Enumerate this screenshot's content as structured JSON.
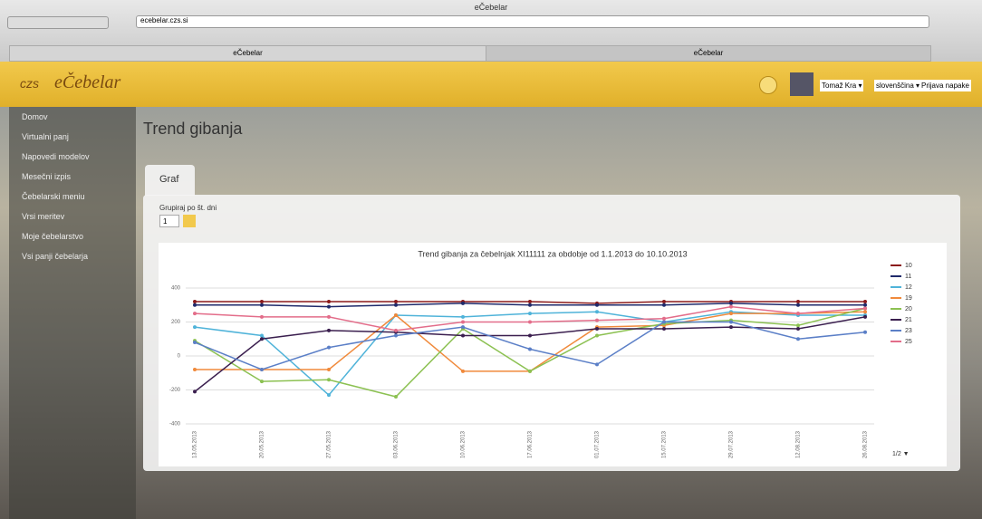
{
  "browser": {
    "window_title": "eČebelar",
    "url": "ecebelar.czs.si",
    "tabs": [
      "eČebelar",
      "eČebelar"
    ]
  },
  "header": {
    "logo_prefix": "czs",
    "logo": "eČebelar",
    "user": "Tomaž Kra ▾",
    "language": "slovenščina ▾",
    "report": "Prijava napake"
  },
  "sidebar": [
    "Domov",
    "Virtualni panj",
    "Napovedi modelov",
    "Mesečni izpis",
    "Čebelarski meniu",
    "Vrsi meritev",
    "Moje čebelarstvo",
    "Vsi panji čebelarja"
  ],
  "page": {
    "title": "Trend gibanja",
    "tab": "Graf",
    "group_label": "Grupiraj po št. dni",
    "group_value": "1"
  },
  "chart_data": {
    "type": "line",
    "title": "Trend gibanja za čebelnjak XI11111 za obdobje od 1.1.2013 do 10.10.2013",
    "categories": [
      "13.05.2013",
      "20.05.2013",
      "27.05.2013",
      "03.06.2013",
      "10.06.2013",
      "17.06.2013",
      "01.07.2013",
      "15.07.2013",
      "29.07.2013",
      "12.08.2013",
      "26.08.2013"
    ],
    "ylim": [
      -400,
      400
    ],
    "yticks": [
      -400,
      -200,
      0,
      200,
      400
    ],
    "grid": true,
    "legend": "right",
    "legend_pager": "1/2 ▼",
    "series": [
      {
        "name": "10",
        "color": "#8b1a1a",
        "values": [
          320,
          320,
          320,
          320,
          320,
          320,
          310,
          320,
          320,
          320,
          320
        ]
      },
      {
        "name": "11",
        "color": "#1f2a6b",
        "values": [
          300,
          300,
          290,
          300,
          310,
          300,
          300,
          300,
          310,
          300,
          300
        ]
      },
      {
        "name": "12",
        "color": "#4fb3d9",
        "values": [
          170,
          120,
          -230,
          240,
          230,
          250,
          260,
          200,
          260,
          240,
          240
        ]
      },
      {
        "name": "19",
        "color": "#f08a3c",
        "values": [
          -80,
          -80,
          -80,
          240,
          -90,
          -90,
          170,
          180,
          250,
          250,
          260
        ]
      },
      {
        "name": "20",
        "color": "#8cc152",
        "values": [
          90,
          -150,
          -140,
          -240,
          160,
          -90,
          120,
          190,
          210,
          180,
          280
        ]
      },
      {
        "name": "21",
        "color": "#3b1f4f",
        "values": [
          -210,
          100,
          150,
          140,
          120,
          120,
          160,
          160,
          170,
          160,
          230
        ]
      },
      {
        "name": "23",
        "color": "#5b7fc7",
        "values": [
          80,
          -80,
          50,
          120,
          170,
          40,
          -50,
          200,
          200,
          100,
          140
        ]
      },
      {
        "name": "25",
        "color": "#e36d8a",
        "values": [
          250,
          230,
          230,
          150,
          200,
          200,
          210,
          220,
          290,
          250,
          280
        ]
      }
    ]
  }
}
